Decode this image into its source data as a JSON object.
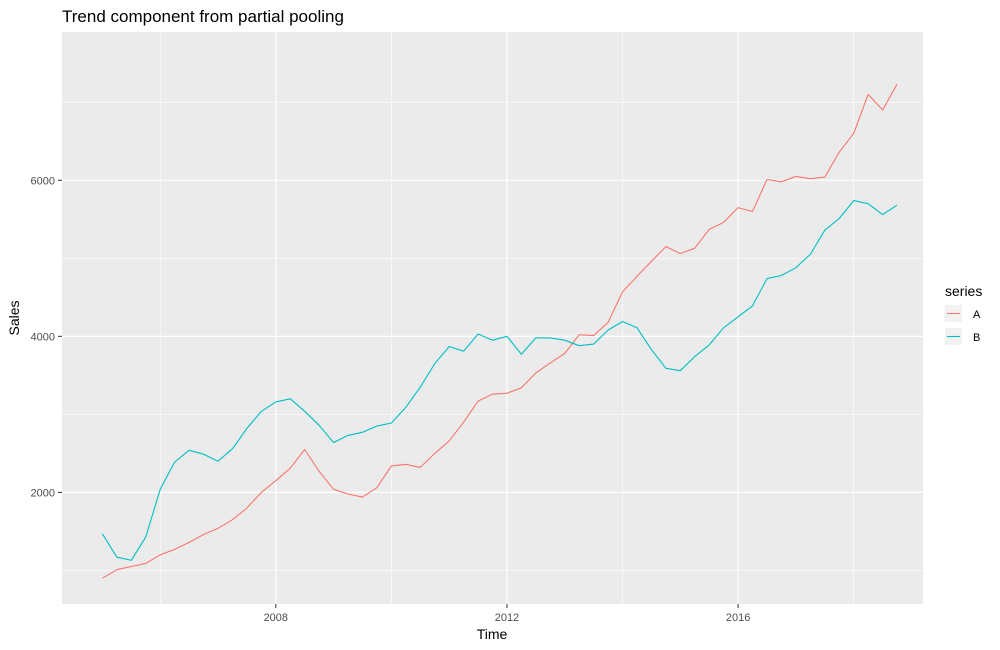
{
  "chart_data": {
    "type": "line",
    "title": "Trend component from partial pooling",
    "xlabel": "Time",
    "ylabel": "Sales",
    "xlim": [
      2004.3,
      2019.2
    ],
    "ylim": [
      570,
      7900
    ],
    "x_ticks": [
      2008,
      2012,
      2016
    ],
    "x_tick_labels": [
      "2008",
      "2012",
      "2016"
    ],
    "y_ticks": [
      2000,
      4000,
      6000
    ],
    "y_tick_labels": [
      "2000",
      "4000",
      "6000"
    ],
    "grid": true,
    "background": "#EBEBEB",
    "legend": {
      "title": "series",
      "position": "right"
    },
    "series": [
      {
        "name": "A",
        "color": "#F8766D",
        "x": [
          2005,
          2005.25,
          2005.5,
          2005.75,
          2006,
          2006.25,
          2006.5,
          2006.75,
          2007,
          2007.25,
          2007.5,
          2007.75,
          2008,
          2008.25,
          2008.5,
          2008.75,
          2009,
          2009.25,
          2009.5,
          2009.75,
          2010,
          2010.25,
          2010.5,
          2010.75,
          2011,
          2011.25,
          2011.5,
          2011.75,
          2012,
          2012.25,
          2012.5,
          2012.75,
          2013,
          2013.25,
          2013.5,
          2013.75,
          2014,
          2014.25,
          2014.5,
          2014.75,
          2015,
          2015.25,
          2015.5,
          2015.75,
          2016,
          2016.25,
          2016.5,
          2016.75,
          2017,
          2017.25,
          2017.5,
          2017.75,
          2018,
          2018.25,
          2018.5,
          2018.75
        ],
        "y": [
          900,
          1010,
          1050,
          1090,
          1200,
          1270,
          1360,
          1460,
          1540,
          1650,
          1800,
          2000,
          2150,
          2310,
          2550,
          2270,
          2040,
          1980,
          1940,
          2060,
          2340,
          2360,
          2320,
          2500,
          2660,
          2900,
          3170,
          3260,
          3270,
          3340,
          3530,
          3660,
          3780,
          4020,
          4010,
          4180,
          4570,
          4770,
          4960,
          5150,
          5060,
          5130,
          5370,
          5460,
          5650,
          5600,
          6010,
          5980,
          6050,
          6020,
          6040,
          6360,
          6600,
          7100,
          6900,
          7230
        ]
      },
      {
        "name": "B",
        "color": "#00BFC4",
        "x": [
          2005,
          2005.25,
          2005.5,
          2005.75,
          2006,
          2006.25,
          2006.5,
          2006.75,
          2007,
          2007.25,
          2007.5,
          2007.75,
          2008,
          2008.25,
          2008.5,
          2008.75,
          2009,
          2009.25,
          2009.5,
          2009.75,
          2010,
          2010.25,
          2010.5,
          2010.75,
          2011,
          2011.25,
          2011.5,
          2011.75,
          2012,
          2012.25,
          2012.5,
          2012.75,
          2013,
          2013.25,
          2013.5,
          2013.75,
          2014,
          2014.25,
          2014.5,
          2014.75,
          2015,
          2015.25,
          2015.5,
          2015.75,
          2016,
          2016.25,
          2016.5,
          2016.75,
          2017,
          2017.25,
          2017.5,
          2017.75,
          2018,
          2018.25,
          2018.5,
          2018.75
        ],
        "y": [
          1470,
          1170,
          1130,
          1430,
          2040,
          2390,
          2540,
          2490,
          2400,
          2560,
          2820,
          3040,
          3160,
          3200,
          3040,
          2860,
          2640,
          2730,
          2770,
          2850,
          2890,
          3090,
          3350,
          3650,
          3870,
          3810,
          4030,
          3950,
          4000,
          3770,
          3980,
          3980,
          3950,
          3880,
          3900,
          4080,
          4190,
          4110,
          3830,
          3590,
          3560,
          3740,
          3890,
          4110,
          4250,
          4390,
          4740,
          4780,
          4880,
          5050,
          5360,
          5510,
          5740,
          5700,
          5560,
          5680
        ]
      }
    ]
  }
}
